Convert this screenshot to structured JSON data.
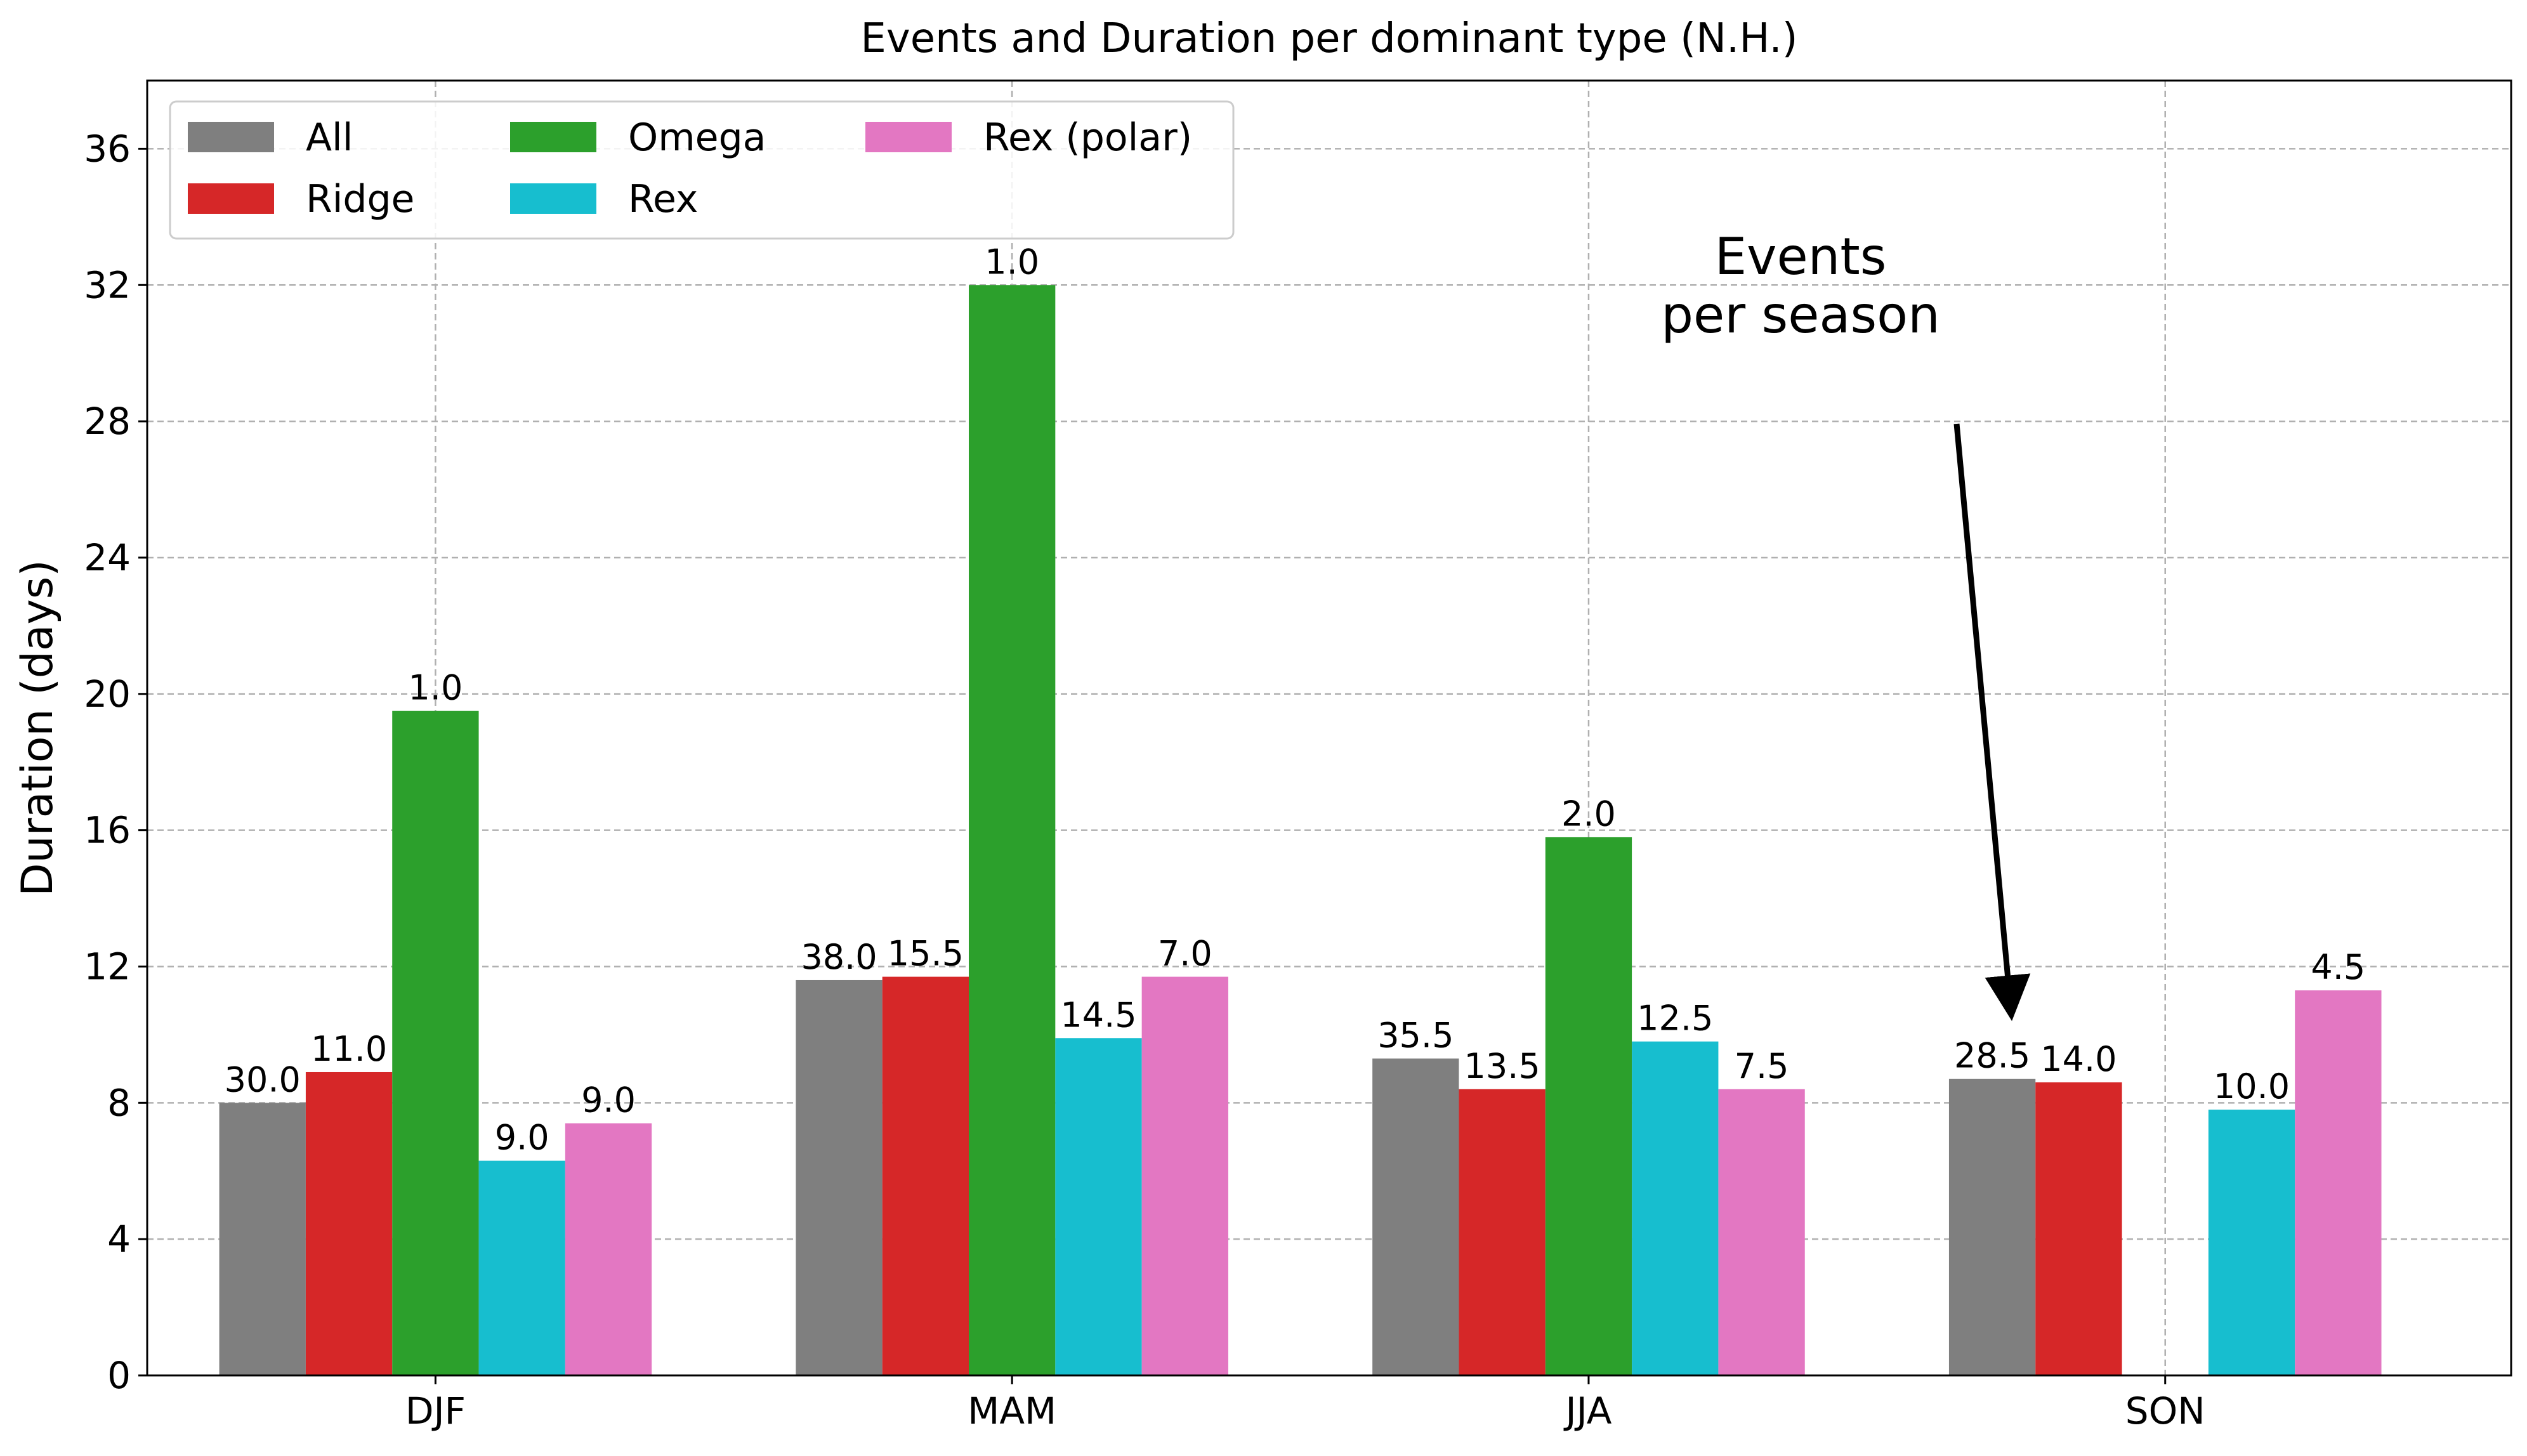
{
  "chart_data": {
    "type": "bar",
    "title": "Events and Duration per dominant type (N.H.)",
    "xlabel": "",
    "ylabel": "Duration (days)",
    "ylim": [
      0,
      38
    ],
    "yticks": [
      0,
      4,
      8,
      12,
      16,
      20,
      24,
      28,
      32,
      36
    ],
    "grid": true,
    "legend_position": "top-left",
    "categories": [
      "DJF",
      "MAM",
      "JJA",
      "SON"
    ],
    "series": [
      {
        "name": "All",
        "color": "#7f7f7f",
        "values": [
          8.0,
          11.6,
          9.3,
          8.7
        ],
        "labels": [
          "30.0",
          "38.0",
          "35.5",
          "28.5"
        ]
      },
      {
        "name": "Ridge",
        "color": "#d62728",
        "values": [
          8.9,
          11.7,
          8.4,
          8.6
        ],
        "labels": [
          "11.0",
          "15.5",
          "13.5",
          "14.0"
        ]
      },
      {
        "name": "Omega",
        "color": "#2ca02c",
        "values": [
          19.5,
          32.0,
          15.8,
          null
        ],
        "labels": [
          "1.0",
          "1.0",
          "2.0",
          null
        ]
      },
      {
        "name": "Rex",
        "color": "#17becf",
        "values": [
          6.3,
          9.9,
          9.8,
          7.8
        ],
        "labels": [
          "9.0",
          "14.5",
          "12.5",
          "10.0"
        ]
      },
      {
        "name": "Rex (polar)",
        "color": "#e377c2",
        "values": [
          7.4,
          11.7,
          8.4,
          11.3
        ],
        "labels": [
          "9.0",
          "7.0",
          "7.5",
          "4.5"
        ]
      }
    ],
    "annotation": {
      "lines": [
        "Events",
        "per season"
      ],
      "arrow_points_to": {
        "category": "SON",
        "value": 11.3
      }
    }
  }
}
